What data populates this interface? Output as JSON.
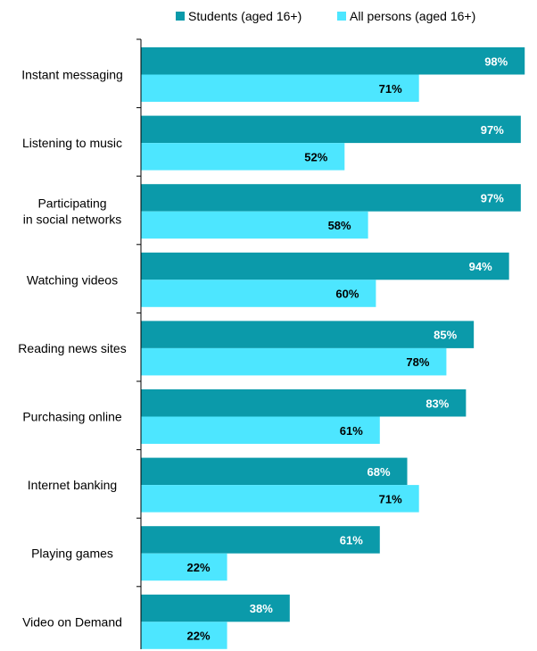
{
  "chart_data": {
    "type": "bar",
    "orientation": "horizontal",
    "categories": [
      "Instant messaging",
      "Listening to music",
      "Participating\nin social networks",
      "Watching videos",
      "Reading news sites",
      "Purchasing online",
      "Internet banking",
      "Playing games",
      "Video on Demand"
    ],
    "series": [
      {
        "name": "Students (aged 16+)",
        "color": "#0b9aaa",
        "label_color": "#ffffff",
        "values": [
          98,
          97,
          97,
          94,
          85,
          83,
          68,
          61,
          38
        ]
      },
      {
        "name": "All persons (aged 16+)",
        "color": "#4de6ff",
        "label_color": "#000000",
        "values": [
          71,
          52,
          58,
          60,
          78,
          61,
          71,
          22,
          22
        ]
      }
    ],
    "value_suffix": "%",
    "xlim": [
      0,
      100
    ],
    "grid": false,
    "legend_position": "top"
  }
}
